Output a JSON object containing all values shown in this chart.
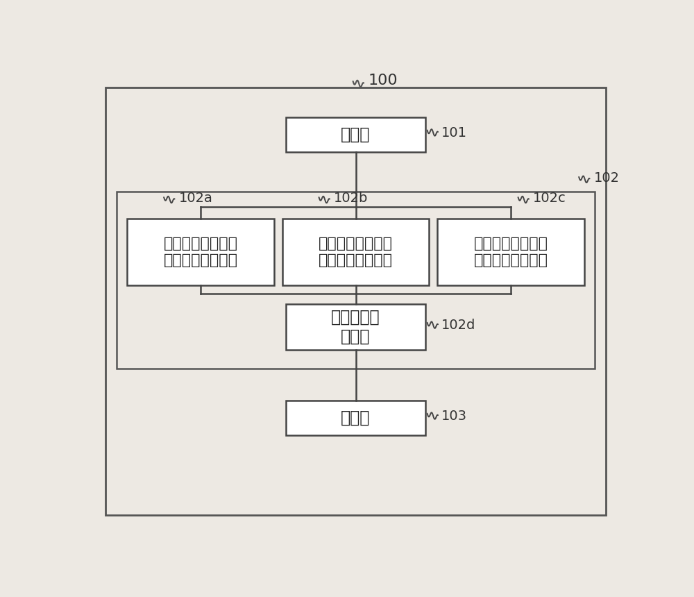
{
  "bg_color": "#ede9e3",
  "box_fill": "#ffffff",
  "box_edge": "#444444",
  "line_color": "#444444",
  "text_color": "#222222",
  "ref_color": "#333333",
  "outer_label": "100",
  "box_101_text": "输入部",
  "box_101_ref": "101",
  "box_102a_text": "负荷式断裂的最大\n容许负荷値计算部",
  "box_102a_ref": "102a",
  "box_102b_text": "力矩式断裂的最大\n容许负荷値计算部",
  "box_102b_ref": "102b",
  "box_102c_text": "焊点内断裂的最大\n容许负荷値计算部",
  "box_102c_ref": "102c",
  "box_102_ref": "102",
  "box_102d_text": "容许负荷値\n计算部",
  "box_102d_ref": "102d",
  "box_103_text": "输出部",
  "box_103_ref": "103",
  "font_cn_size": 17,
  "font_ref_size": 14
}
